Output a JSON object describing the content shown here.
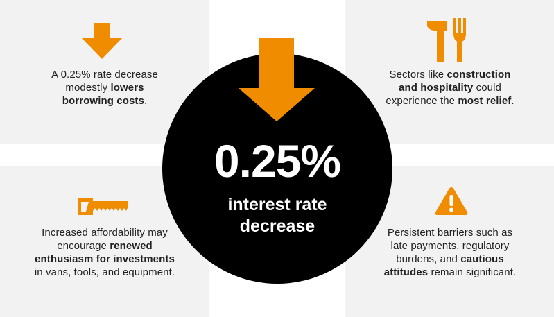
{
  "colors": {
    "accent": "#f08c00",
    "panel": "#f2f2f2",
    "circle": "#000000",
    "text": "#222222"
  },
  "icons": {
    "top_left": "down-arrow-icon",
    "top_right": "hammer-fork-icon",
    "bottom_left": "saw-icon",
    "bottom_right": "warning-icon",
    "center": "big-down-arrow-icon"
  },
  "center": {
    "value": "0.25%",
    "label_line1": "interest rate",
    "label_line2": "decrease"
  },
  "cards": {
    "top_left": {
      "l1": "A 0.25% rate decrease",
      "l2a": "modestly ",
      "l2b": "lowers",
      "l3a": "borrowing costs",
      "l3b": "."
    },
    "top_right": {
      "l1a": "Sectors like ",
      "l1b": "construction",
      "l2a": "and hospitality",
      "l2b": " could",
      "l3a": "experience the ",
      "l3b": "most relief",
      "l3c": "."
    },
    "bottom_left": {
      "l1": "Increased affordability may",
      "l2a": "encourage ",
      "l2b": "renewed",
      "l3": "enthusiasm for investments",
      "l4": "in vans, tools, and equipment."
    },
    "bottom_right": {
      "l1": "Persistent barriers such as",
      "l2": "late payments, regulatory",
      "l3a": "burdens, and ",
      "l3b": "cautious",
      "l4a": "attitudes",
      "l4b": " remain significant."
    }
  }
}
